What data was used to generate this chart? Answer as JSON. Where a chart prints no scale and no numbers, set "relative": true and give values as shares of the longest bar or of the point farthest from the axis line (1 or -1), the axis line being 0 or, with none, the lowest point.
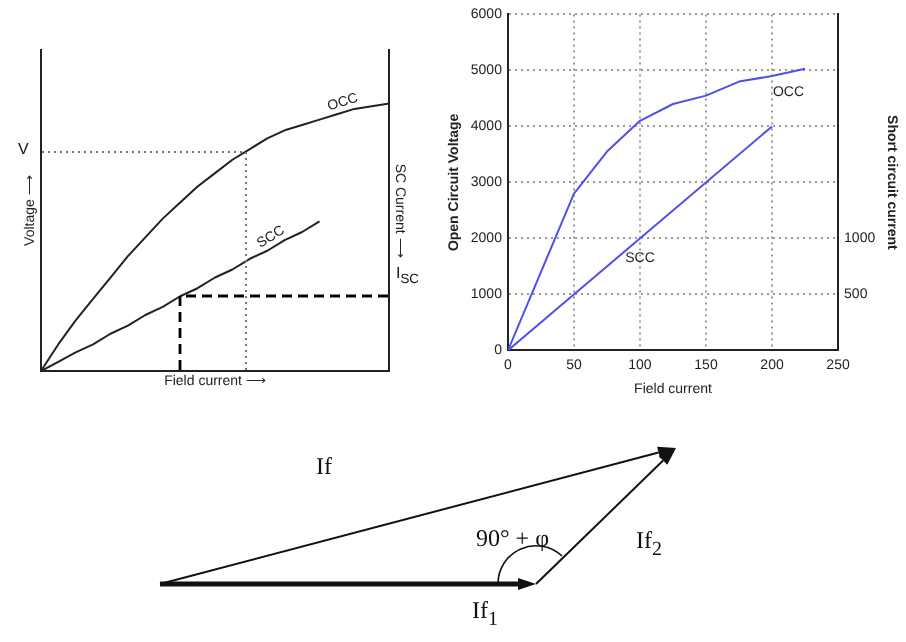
{
  "chart_data": [
    {
      "type": "line",
      "relative": true,
      "xlabel": "Field current ⟶",
      "ylabel": "Voltage ⟶",
      "y2label": "SC Current ⟶",
      "tick_labels": false,
      "grid": false,
      "categories": [
        null,
        null,
        null,
        null,
        null,
        null,
        null,
        null,
        null,
        null,
        null,
        null,
        null,
        null,
        null,
        null,
        null,
        null,
        null,
        null,
        null
      ],
      "series": [
        {
          "name": "OCC",
          "color": "#222222",
          "values": [
            0,
            0.1,
            0.19,
            0.27,
            0.35,
            0.43,
            0.5,
            0.57,
            0.63,
            0.69,
            0.74,
            0.79,
            0.83,
            0.87,
            0.9,
            0.92,
            0.94,
            0.96,
            0.98,
            0.99,
            1
          ]
        },
        {
          "name": "SCC",
          "color": "#222222",
          "values": [
            0,
            0.035,
            0.07,
            0.1,
            0.14,
            0.17,
            0.21,
            0.24,
            0.28,
            0.31,
            0.35,
            0.38,
            0.42,
            0.45,
            0.49,
            0.52,
            0.56,
            null,
            null,
            null,
            null
          ]
        }
      ],
      "annotations": [
        "V",
        "I$_{SC}$"
      ]
    },
    {
      "type": "line",
      "xlabel": "Field current",
      "ylabel": "Open Circuit Voltage",
      "y2label": "Short circuit current",
      "xlim": [
        0,
        250
      ],
      "xticks": [
        0,
        50,
        100,
        150,
        200,
        250
      ],
      "ylim": [
        0,
        6000
      ],
      "yticks": [
        0,
        1000,
        2000,
        3000,
        4000,
        5000,
        6000
      ],
      "y2lim": [
        0,
        3000
      ],
      "y2ticks": [
        500,
        1000
      ],
      "grid": true,
      "series": [
        {
          "name": "OCC",
          "color": "#5050e8",
          "x": [
            0,
            50,
            75,
            100,
            125,
            150,
            175,
            200,
            225
          ],
          "values": [
            0,
            2800,
            3550,
            4100,
            4400,
            4550,
            4800,
            4900,
            5030
          ]
        },
        {
          "name": "SCC",
          "color": "#5050e8",
          "axis": "y2",
          "x": [
            0,
            200
          ],
          "values": [
            0,
            2000
          ]
        }
      ]
    },
    {
      "type": "other",
      "annotations": [
        "If",
        "If$_{2}$",
        "90° + φ",
        "If$_{1}$"
      ]
    }
  ]
}
